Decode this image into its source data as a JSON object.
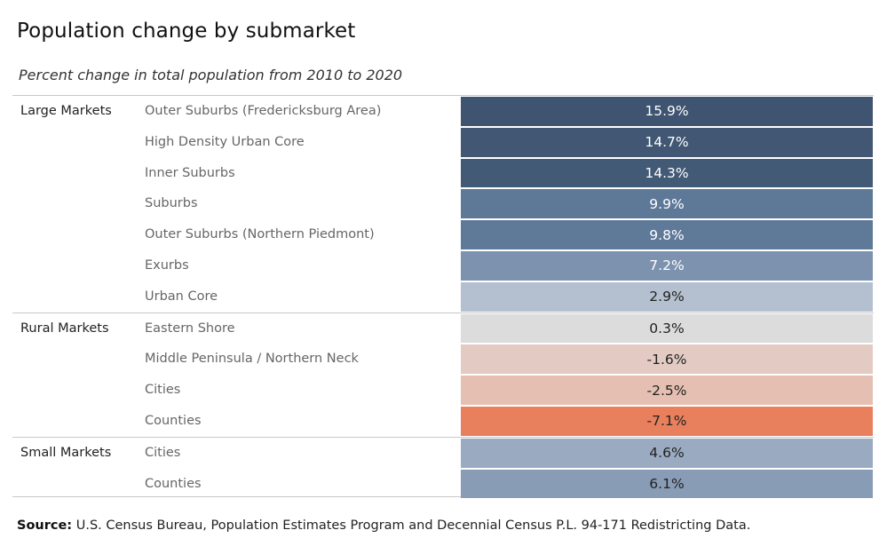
{
  "title": "Population change by submarket",
  "subtitle": "Percent change in total population from 2010 to 2020",
  "source_label": "Source:",
  "source_text": "U.S. Census Bureau, Population Estimates Program and Decennial Census P.L. 94-171 Redistricting Data.",
  "chart_data": {
    "type": "table",
    "groups": [
      {
        "name": "Large Markets",
        "rows": [
          {
            "label": "Outer Suburbs (Fredericksburg Area)",
            "value": 15.9,
            "display": "15.9%",
            "color": "#3e5470",
            "text_color": "#ffffff"
          },
          {
            "label": "High Density Urban Core",
            "value": 14.7,
            "display": "14.7%",
            "color": "#415774",
            "text_color": "#ffffff"
          },
          {
            "label": "Inner Suburbs",
            "value": 14.3,
            "display": "14.3%",
            "color": "#435a77",
            "text_color": "#ffffff"
          },
          {
            "label": "Suburbs",
            "value": 9.9,
            "display": "9.9%",
            "color": "#5e7898",
            "text_color": "#ffffff"
          },
          {
            "label": "Outer Suburbs (Northern Piedmont)",
            "value": 9.8,
            "display": "9.8%",
            "color": "#5f7999",
            "text_color": "#ffffff"
          },
          {
            "label": "Exurbs",
            "value": 7.2,
            "display": "7.2%",
            "color": "#7c92ae",
            "text_color": "#ffffff"
          },
          {
            "label": "Urban Core",
            "value": 2.9,
            "display": "2.9%",
            "color": "#b4c0cf",
            "text_color": "#222222"
          }
        ]
      },
      {
        "name": "Rural Markets",
        "rows": [
          {
            "label": "Eastern Shore",
            "value": 0.3,
            "display": "0.3%",
            "color": "#dcdcdc",
            "text_color": "#222222"
          },
          {
            "label": "Middle Peninsula / Northern Neck",
            "value": -1.6,
            "display": "-1.6%",
            "color": "#e3cbc3",
            "text_color": "#222222"
          },
          {
            "label": "Cities",
            "value": -2.5,
            "display": "-2.5%",
            "color": "#e5c0b2",
            "text_color": "#222222"
          },
          {
            "label": "Counties",
            "value": -7.1,
            "display": "-7.1%",
            "color": "#e8805e",
            "text_color": "#222222"
          }
        ]
      },
      {
        "name": "Small Markets",
        "rows": [
          {
            "label": "Cities",
            "value": 4.6,
            "display": "4.6%",
            "color": "#9aabc1",
            "text_color": "#222222"
          },
          {
            "label": "Counties",
            "value": 6.1,
            "display": "6.1%",
            "color": "#889cb6",
            "text_color": "#222222"
          }
        ]
      }
    ]
  }
}
